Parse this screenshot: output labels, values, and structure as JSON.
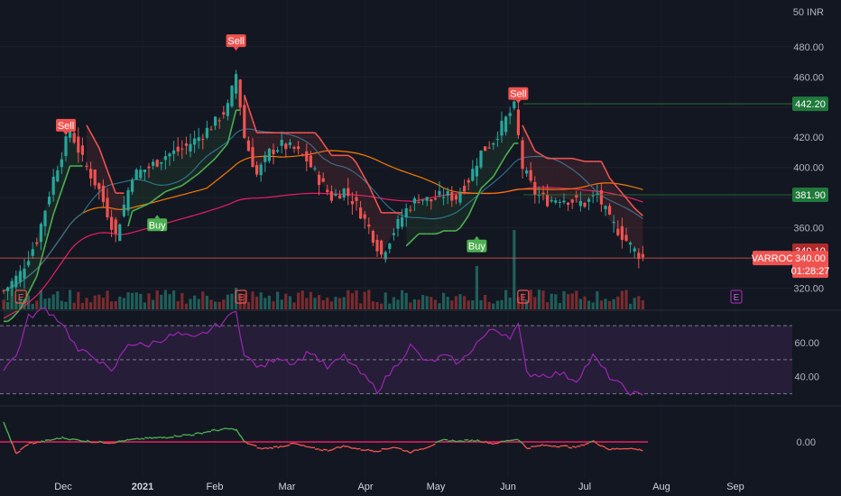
{
  "chart_data": [
    {
      "type": "candlestick",
      "symbol": "VARROC",
      "currency": "INR",
      "axis_unit_label": "50 INR",
      "y_ticks": [
        320,
        340,
        360,
        380,
        400,
        420,
        440,
        460,
        480
      ],
      "ylim": [
        306,
        505
      ],
      "x_months": [
        "Dec",
        "2021",
        "Feb",
        "Mar",
        "Apr",
        "May",
        "Jun",
        "Jul",
        "Aug",
        "Sep"
      ],
      "price_anchors": [
        {
          "bar": 0,
          "close": 318
        },
        {
          "bar": 4,
          "close": 330
        },
        {
          "bar": 8,
          "close": 352
        },
        {
          "bar": 12,
          "close": 393
        },
        {
          "bar": 16,
          "close": 425
        },
        {
          "bar": 19,
          "close": 405
        },
        {
          "bar": 23,
          "close": 385
        },
        {
          "bar": 27,
          "close": 355
        },
        {
          "bar": 31,
          "close": 395
        },
        {
          "bar": 35,
          "close": 400
        },
        {
          "bar": 39,
          "close": 408
        },
        {
          "bar": 43,
          "close": 412
        },
        {
          "bar": 47,
          "close": 420
        },
        {
          "bar": 51,
          "close": 430
        },
        {
          "bar": 54,
          "close": 440
        },
        {
          "bar": 56,
          "close": 462
        },
        {
          "bar": 58,
          "close": 420
        },
        {
          "bar": 61,
          "close": 395
        },
        {
          "bar": 64,
          "close": 410
        },
        {
          "bar": 67,
          "close": 415
        },
        {
          "bar": 70,
          "close": 412
        },
        {
          "bar": 73,
          "close": 405
        },
        {
          "bar": 76,
          "close": 392
        },
        {
          "bar": 79,
          "close": 380
        },
        {
          "bar": 82,
          "close": 385
        },
        {
          "bar": 85,
          "close": 375
        },
        {
          "bar": 88,
          "close": 360
        },
        {
          "bar": 91,
          "close": 342
        },
        {
          "bar": 94,
          "close": 358
        },
        {
          "bar": 97,
          "close": 372
        },
        {
          "bar": 100,
          "close": 380
        },
        {
          "bar": 103,
          "close": 378
        },
        {
          "bar": 106,
          "close": 382
        },
        {
          "bar": 109,
          "close": 380
        },
        {
          "bar": 112,
          "close": 392
        },
        {
          "bar": 115,
          "close": 410
        },
        {
          "bar": 118,
          "close": 418
        },
        {
          "bar": 121,
          "close": 432
        },
        {
          "bar": 123,
          "close": 440
        },
        {
          "bar": 125,
          "close": 400
        },
        {
          "bar": 128,
          "close": 383
        },
        {
          "bar": 131,
          "close": 378
        },
        {
          "bar": 134,
          "close": 380
        },
        {
          "bar": 137,
          "close": 378
        },
        {
          "bar": 140,
          "close": 376
        },
        {
          "bar": 143,
          "close": 382
        },
        {
          "bar": 146,
          "close": 365
        },
        {
          "bar": 149,
          "close": 355
        },
        {
          "bar": 152,
          "close": 345
        },
        {
          "bar": 154,
          "close": 340
        }
      ],
      "signals": [
        {
          "label": "Sell",
          "bar": 15,
          "price": 428
        },
        {
          "label": "Buy",
          "bar": 37,
          "price": 362
        },
        {
          "label": "Sell",
          "bar": 56,
          "price": 484
        },
        {
          "label": "Buy",
          "bar": 114,
          "price": 348
        },
        {
          "label": "Sell",
          "bar": 124,
          "price": 449
        }
      ],
      "earnings_markers": [
        {
          "bar": 2
        },
        {
          "bar": 55
        },
        {
          "bar": 123
        },
        {
          "bar": 176
        }
      ],
      "earnings_label": "E",
      "levels": [
        {
          "price": 442.2,
          "label": "442.20",
          "color": "#1f7a3b"
        },
        {
          "price": 381.9,
          "label": "381.90",
          "color": "#1f7a3b"
        },
        {
          "price": 340.1,
          "label": "340.10",
          "color": "#b02a2a"
        },
        {
          "price": 340.0,
          "label": "340.00",
          "color": "#ef5350"
        }
      ],
      "last_price_tag": {
        "symbol": "VARROC",
        "price": "340.00",
        "countdown": "01:28:27"
      },
      "colors": {
        "up": "#26a69a",
        "down": "#ef5350",
        "sell": "#ef5350",
        "buy": "#4caf50"
      }
    },
    {
      "type": "line",
      "name": "",
      "y_ticks": [
        40.0,
        60.0
      ],
      "ylim": [
        25,
        78
      ],
      "bands": [
        30,
        50,
        70
      ],
      "anchors": [
        {
          "bar": 0,
          "v": 45
        },
        {
          "bar": 3,
          "v": 52
        },
        {
          "bar": 6,
          "v": 75
        },
        {
          "bar": 10,
          "v": 80
        },
        {
          "bar": 14,
          "v": 72
        },
        {
          "bar": 18,
          "v": 55
        },
        {
          "bar": 22,
          "v": 52
        },
        {
          "bar": 26,
          "v": 42
        },
        {
          "bar": 30,
          "v": 60
        },
        {
          "bar": 34,
          "v": 58
        },
        {
          "bar": 38,
          "v": 62
        },
        {
          "bar": 42,
          "v": 65
        },
        {
          "bar": 46,
          "v": 62
        },
        {
          "bar": 50,
          "v": 68
        },
        {
          "bar": 54,
          "v": 74
        },
        {
          "bar": 56,
          "v": 80
        },
        {
          "bar": 58,
          "v": 52
        },
        {
          "bar": 62,
          "v": 45
        },
        {
          "bar": 66,
          "v": 52
        },
        {
          "bar": 70,
          "v": 48
        },
        {
          "bar": 74,
          "v": 55
        },
        {
          "bar": 78,
          "v": 45
        },
        {
          "bar": 82,
          "v": 52
        },
        {
          "bar": 86,
          "v": 42
        },
        {
          "bar": 90,
          "v": 32
        },
        {
          "bar": 94,
          "v": 45
        },
        {
          "bar": 98,
          "v": 58
        },
        {
          "bar": 102,
          "v": 48
        },
        {
          "bar": 106,
          "v": 52
        },
        {
          "bar": 110,
          "v": 48
        },
        {
          "bar": 114,
          "v": 60
        },
        {
          "bar": 118,
          "v": 68
        },
        {
          "bar": 122,
          "v": 64
        },
        {
          "bar": 124,
          "v": 70
        },
        {
          "bar": 126,
          "v": 42
        },
        {
          "bar": 130,
          "v": 41
        },
        {
          "bar": 134,
          "v": 42
        },
        {
          "bar": 138,
          "v": 38
        },
        {
          "bar": 142,
          "v": 52
        },
        {
          "bar": 146,
          "v": 40
        },
        {
          "bar": 150,
          "v": 32
        },
        {
          "bar": 154,
          "v": 28
        }
      ],
      "colors": {
        "line": "#9c27b0",
        "band_fill": "#2a1f3d"
      }
    },
    {
      "type": "line",
      "name": "",
      "y_ticks": [
        0.0
      ],
      "ylim": [
        -1,
        1
      ],
      "zero_value": 0.0,
      "anchors": [
        {
          "bar": 0,
          "v": 0.6
        },
        {
          "bar": 3,
          "v": -0.35
        },
        {
          "bar": 6,
          "v": -0.05
        },
        {
          "bar": 10,
          "v": 0.02
        },
        {
          "bar": 14,
          "v": 0.12
        },
        {
          "bar": 18,
          "v": 0.05
        },
        {
          "bar": 22,
          "v": 0.0
        },
        {
          "bar": 26,
          "v": -0.02
        },
        {
          "bar": 30,
          "v": 0.05
        },
        {
          "bar": 34,
          "v": 0.1
        },
        {
          "bar": 38,
          "v": 0.12
        },
        {
          "bar": 42,
          "v": 0.18
        },
        {
          "bar": 46,
          "v": 0.22
        },
        {
          "bar": 50,
          "v": 0.32
        },
        {
          "bar": 54,
          "v": 0.38
        },
        {
          "bar": 56,
          "v": 0.36
        },
        {
          "bar": 58,
          "v": 0.0
        },
        {
          "bar": 62,
          "v": -0.2
        },
        {
          "bar": 66,
          "v": -0.15
        },
        {
          "bar": 70,
          "v": -0.05
        },
        {
          "bar": 74,
          "v": -0.18
        },
        {
          "bar": 78,
          "v": -0.25
        },
        {
          "bar": 82,
          "v": -0.12
        },
        {
          "bar": 86,
          "v": -0.22
        },
        {
          "bar": 90,
          "v": -0.26
        },
        {
          "bar": 94,
          "v": -0.15
        },
        {
          "bar": 98,
          "v": -0.3
        },
        {
          "bar": 102,
          "v": -0.15
        },
        {
          "bar": 106,
          "v": 0.05
        },
        {
          "bar": 110,
          "v": 0.02
        },
        {
          "bar": 114,
          "v": 0.05
        },
        {
          "bar": 118,
          "v": -0.05
        },
        {
          "bar": 122,
          "v": 0.05
        },
        {
          "bar": 124,
          "v": 0.08
        },
        {
          "bar": 126,
          "v": -0.18
        },
        {
          "bar": 130,
          "v": -0.1
        },
        {
          "bar": 134,
          "v": -0.12
        },
        {
          "bar": 138,
          "v": -0.16
        },
        {
          "bar": 142,
          "v": 0.02
        },
        {
          "bar": 146,
          "v": -0.22
        },
        {
          "bar": 150,
          "v": -0.18
        },
        {
          "bar": 154,
          "v": -0.24
        }
      ],
      "colors": {
        "above": "#4caf50",
        "below": "#ef5350"
      }
    }
  ]
}
